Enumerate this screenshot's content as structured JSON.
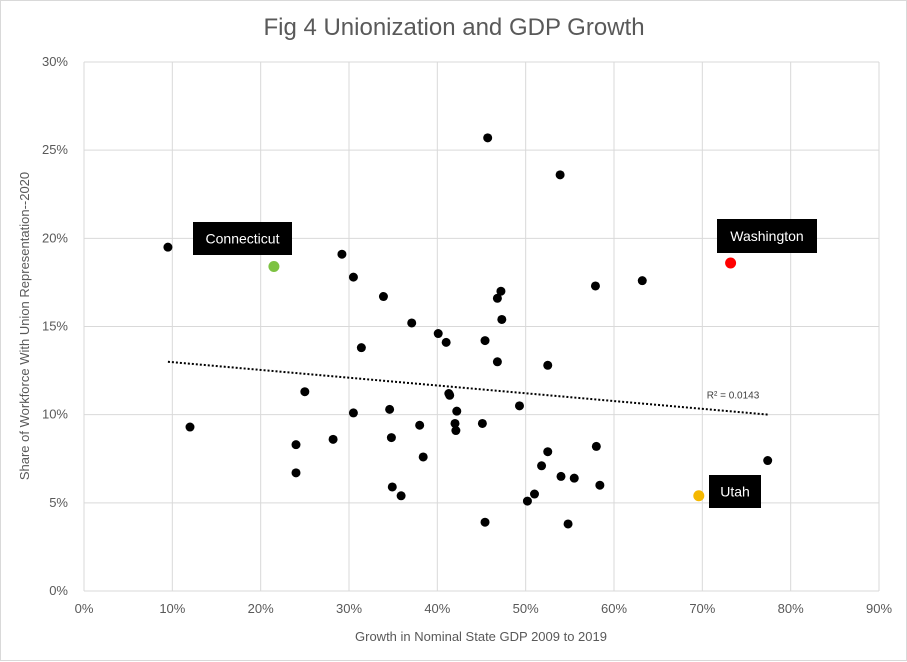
{
  "chart_data": {
    "type": "scatter",
    "title": "Fig 4 Unionization and GDP Growth",
    "xlabel": "Growth  in Nominal State GDP 2009 to 2019",
    "ylabel": "Share of Workforce With Union Representation--2020",
    "xlim": [
      0,
      90
    ],
    "ylim": [
      0,
      30
    ],
    "x_ticks": [
      "0%",
      "10%",
      "20%",
      "30%",
      "40%",
      "50%",
      "60%",
      "70%",
      "80%",
      "90%"
    ],
    "y_ticks": [
      "0%",
      "5%",
      "10%",
      "15%",
      "20%",
      "25%",
      "30%"
    ],
    "grid": true,
    "trendline": {
      "type": "linear",
      "style": "dotted",
      "color": "#000000",
      "from": [
        9.5,
        13.0
      ],
      "to": [
        77.5,
        10.0
      ],
      "r2_label": "R² = 0.0143"
    },
    "series": [
      {
        "color": "#000000",
        "points": [
          [
            9.5,
            19.5
          ],
          [
            12.0,
            9.3
          ],
          [
            24.0,
            8.3
          ],
          [
            24.0,
            6.7
          ],
          [
            25.0,
            11.3
          ],
          [
            28.2,
            8.6
          ],
          [
            29.2,
            19.1
          ],
          [
            30.5,
            17.8
          ],
          [
            30.5,
            10.1
          ],
          [
            31.4,
            13.8
          ],
          [
            33.9,
            16.7
          ],
          [
            34.6,
            10.3
          ],
          [
            34.8,
            8.7
          ],
          [
            34.9,
            5.9
          ],
          [
            35.9,
            5.4
          ],
          [
            37.1,
            15.2
          ],
          [
            38.0,
            9.4
          ],
          [
            38.4,
            7.6
          ],
          [
            40.1,
            14.6
          ],
          [
            41.0,
            14.1
          ],
          [
            41.3,
            11.2
          ],
          [
            41.4,
            11.1
          ],
          [
            42.0,
            9.5
          ],
          [
            42.1,
            9.1
          ],
          [
            42.2,
            10.2
          ],
          [
            45.1,
            9.5
          ],
          [
            45.4,
            14.2
          ],
          [
            45.4,
            3.9
          ],
          [
            45.7,
            25.7
          ],
          [
            46.8,
            16.6
          ],
          [
            46.8,
            13.0
          ],
          [
            47.2,
            17.0
          ],
          [
            47.3,
            15.4
          ],
          [
            49.3,
            10.5
          ],
          [
            50.2,
            5.1
          ],
          [
            51.0,
            5.5
          ],
          [
            51.8,
            7.1
          ],
          [
            52.5,
            7.9
          ],
          [
            52.5,
            12.8
          ],
          [
            53.9,
            23.6
          ],
          [
            54.0,
            6.5
          ],
          [
            54.8,
            3.8
          ],
          [
            55.5,
            6.4
          ],
          [
            57.9,
            17.3
          ],
          [
            58.0,
            8.2
          ],
          [
            58.4,
            6.0
          ],
          [
            63.2,
            17.6
          ],
          [
            77.4,
            7.4
          ]
        ]
      }
    ],
    "highlights": [
      {
        "label": "Connecticut",
        "x": 21.5,
        "y": 18.4,
        "color": "#7dc242"
      },
      {
        "label": "Washington",
        "x": 73.2,
        "y": 18.6,
        "color": "#ff0000"
      },
      {
        "label": "Utah",
        "x": 69.6,
        "y": 5.4,
        "color": "#f5b800"
      }
    ]
  }
}
